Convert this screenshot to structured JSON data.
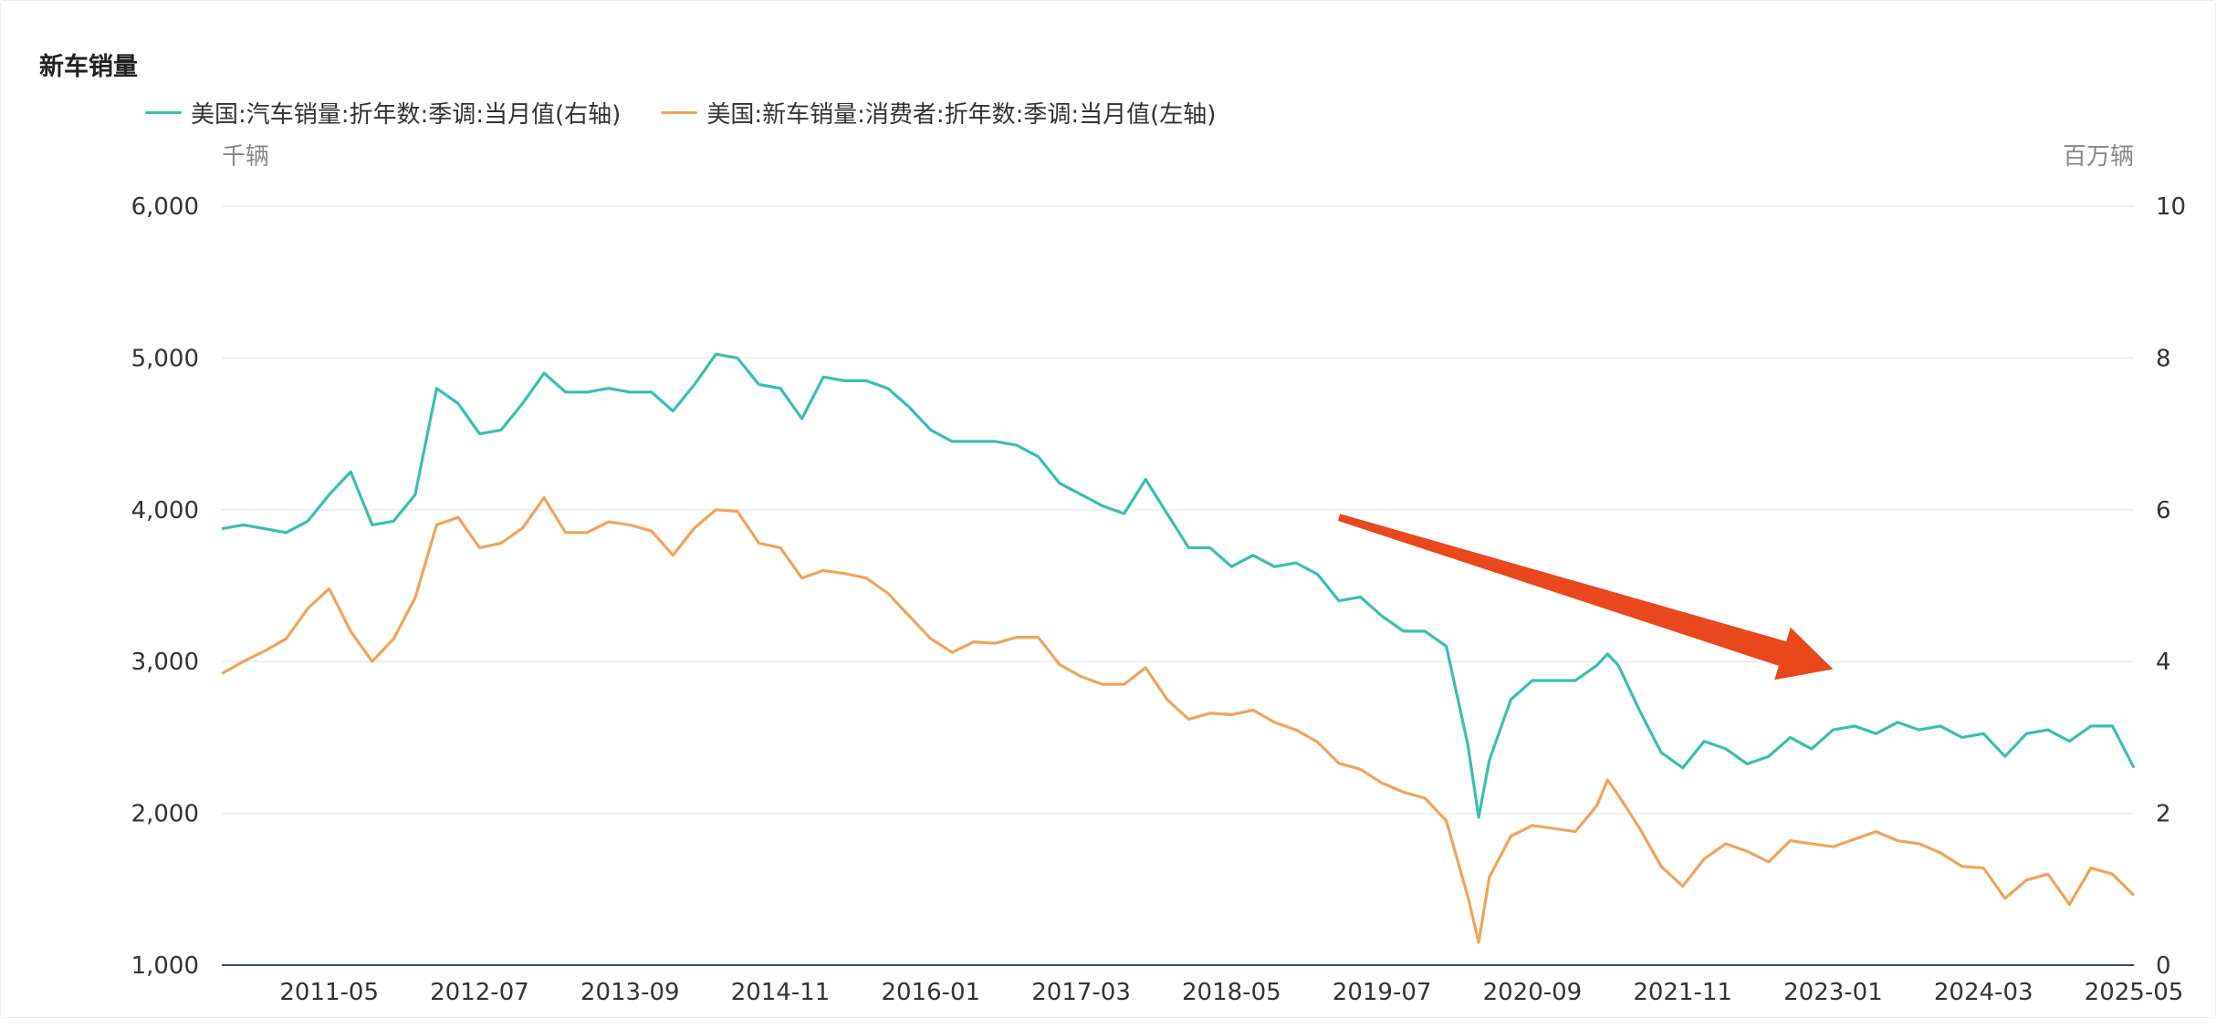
{
  "chart_data": {
    "type": "line",
    "title": "新车销量",
    "y_left_unit": "千辆",
    "y_right_unit": "百万辆",
    "y_left_ticks": [
      "6,000",
      "5,000",
      "4,000",
      "3,000",
      "2,000",
      "1,000"
    ],
    "y_right_ticks": [
      "10",
      "8",
      "6",
      "4",
      "2",
      "0"
    ],
    "y_left_range": [
      1000,
      6000
    ],
    "y_right_range": [
      0,
      10
    ],
    "x_range": [
      "2010-07",
      "2025-05"
    ],
    "x_tick_labels": [
      {
        "date": "2011-05",
        "label": "2011-05"
      },
      {
        "date": "2012-07",
        "label": "2012-07"
      },
      {
        "date": "2013-09",
        "label": "2013-09"
      },
      {
        "date": "2014-11",
        "label": "2014-11"
      },
      {
        "date": "2016-01",
        "label": "2016-01"
      },
      {
        "date": "2017-03",
        "label": "2017-03"
      },
      {
        "date": "2018-05",
        "label": "2018-05"
      },
      {
        "date": "2019-07",
        "label": "2019-07"
      },
      {
        "date": "2020-09",
        "label": "2020-09"
      },
      {
        "date": "2021-11",
        "label": "2021-11"
      },
      {
        "date": "2023-01",
        "label": "2023-01"
      },
      {
        "date": "2024-03",
        "label": "2024-03"
      },
      {
        "date": "2025-05",
        "label": "2025-05"
      }
    ],
    "grid": true,
    "legend_position": "top-left",
    "series": [
      {
        "name": "美国:汽车销量:折年数:季调:当月值(右轴)",
        "axis": "right",
        "color": "#3bbfb0",
        "points": [
          [
            "2010-07",
            5.75
          ],
          [
            "2010-09",
            5.8
          ],
          [
            "2010-11",
            5.75
          ],
          [
            "2011-01",
            5.7
          ],
          [
            "2011-03",
            5.85
          ],
          [
            "2011-05",
            6.2
          ],
          [
            "2011-07",
            6.5
          ],
          [
            "2011-09",
            5.8
          ],
          [
            "2011-11",
            5.85
          ],
          [
            "2012-01",
            6.2
          ],
          [
            "2012-03",
            7.6
          ],
          [
            "2012-05",
            7.4
          ],
          [
            "2012-07",
            7.0
          ],
          [
            "2012-09",
            7.05
          ],
          [
            "2012-11",
            7.4
          ],
          [
            "2013-01",
            7.8
          ],
          [
            "2013-03",
            7.55
          ],
          [
            "2013-05",
            7.55
          ],
          [
            "2013-07",
            7.6
          ],
          [
            "2013-09",
            7.55
          ],
          [
            "2013-11",
            7.55
          ],
          [
            "2014-01",
            7.3
          ],
          [
            "2014-03",
            7.65
          ],
          [
            "2014-05",
            8.05
          ],
          [
            "2014-07",
            8.0
          ],
          [
            "2014-09",
            7.65
          ],
          [
            "2014-11",
            7.6
          ],
          [
            "2015-01",
            7.2
          ],
          [
            "2015-03",
            7.75
          ],
          [
            "2015-05",
            7.7
          ],
          [
            "2015-07",
            7.7
          ],
          [
            "2015-09",
            7.6
          ],
          [
            "2015-11",
            7.35
          ],
          [
            "2016-01",
            7.05
          ],
          [
            "2016-03",
            6.9
          ],
          [
            "2016-05",
            6.9
          ],
          [
            "2016-07",
            6.9
          ],
          [
            "2016-09",
            6.85
          ],
          [
            "2016-11",
            6.7
          ],
          [
            "2017-01",
            6.35
          ],
          [
            "2017-03",
            6.2
          ],
          [
            "2017-05",
            6.05
          ],
          [
            "2017-07",
            5.95
          ],
          [
            "2017-09",
            6.4
          ],
          [
            "2017-11",
            5.95
          ],
          [
            "2018-01",
            5.5
          ],
          [
            "2018-03",
            5.5
          ],
          [
            "2018-05",
            5.25
          ],
          [
            "2018-07",
            5.4
          ],
          [
            "2018-09",
            5.25
          ],
          [
            "2018-11",
            5.3
          ],
          [
            "2019-01",
            5.15
          ],
          [
            "2019-03",
            4.8
          ],
          [
            "2019-05",
            4.85
          ],
          [
            "2019-07",
            4.6
          ],
          [
            "2019-09",
            4.4
          ],
          [
            "2019-11",
            4.4
          ],
          [
            "2020-01",
            4.2
          ],
          [
            "2020-03",
            2.9
          ],
          [
            "2020-04",
            1.95
          ],
          [
            "2020-05",
            2.7
          ],
          [
            "2020-07",
            3.5
          ],
          [
            "2020-09",
            3.75
          ],
          [
            "2020-11",
            3.75
          ],
          [
            "2021-01",
            3.75
          ],
          [
            "2021-03",
            3.95
          ],
          [
            "2021-04",
            4.1
          ],
          [
            "2021-05",
            3.95
          ],
          [
            "2021-07",
            3.35
          ],
          [
            "2021-09",
            2.8
          ],
          [
            "2021-11",
            2.6
          ],
          [
            "2022-01",
            2.95
          ],
          [
            "2022-03",
            2.85
          ],
          [
            "2022-05",
            2.65
          ],
          [
            "2022-07",
            2.75
          ],
          [
            "2022-09",
            3.0
          ],
          [
            "2022-11",
            2.85
          ],
          [
            "2023-01",
            3.1
          ],
          [
            "2023-03",
            3.15
          ],
          [
            "2023-05",
            3.05
          ],
          [
            "2023-07",
            3.2
          ],
          [
            "2023-09",
            3.1
          ],
          [
            "2023-11",
            3.15
          ],
          [
            "2024-01",
            3.0
          ],
          [
            "2024-03",
            3.05
          ],
          [
            "2024-05",
            2.75
          ],
          [
            "2024-07",
            3.05
          ],
          [
            "2024-09",
            3.1
          ],
          [
            "2024-11",
            2.95
          ],
          [
            "2025-01",
            3.15
          ],
          [
            "2025-03",
            3.15
          ],
          [
            "2025-05",
            2.6
          ]
        ]
      },
      {
        "name": "美国:新车销量:消费者:折年数:季调:当月值(左轴)",
        "axis": "left",
        "color": "#f0a55a",
        "points": [
          [
            "2010-07",
            2920
          ],
          [
            "2010-09",
            3000
          ],
          [
            "2010-11",
            3070
          ],
          [
            "2011-01",
            3150
          ],
          [
            "2011-03",
            3350
          ],
          [
            "2011-05",
            3480
          ],
          [
            "2011-07",
            3200
          ],
          [
            "2011-09",
            3000
          ],
          [
            "2011-11",
            3150
          ],
          [
            "2012-01",
            3420
          ],
          [
            "2012-03",
            3900
          ],
          [
            "2012-05",
            3950
          ],
          [
            "2012-07",
            3750
          ],
          [
            "2012-09",
            3780
          ],
          [
            "2012-11",
            3880
          ],
          [
            "2013-01",
            4080
          ],
          [
            "2013-03",
            3850
          ],
          [
            "2013-05",
            3850
          ],
          [
            "2013-07",
            3920
          ],
          [
            "2013-09",
            3900
          ],
          [
            "2013-11",
            3860
          ],
          [
            "2014-01",
            3700
          ],
          [
            "2014-03",
            3880
          ],
          [
            "2014-05",
            4000
          ],
          [
            "2014-07",
            3990
          ],
          [
            "2014-09",
            3780
          ],
          [
            "2014-11",
            3750
          ],
          [
            "2015-01",
            3550
          ],
          [
            "2015-03",
            3600
          ],
          [
            "2015-05",
            3580
          ],
          [
            "2015-07",
            3550
          ],
          [
            "2015-09",
            3450
          ],
          [
            "2015-11",
            3300
          ],
          [
            "2016-01",
            3150
          ],
          [
            "2016-03",
            3060
          ],
          [
            "2016-05",
            3130
          ],
          [
            "2016-07",
            3120
          ],
          [
            "2016-09",
            3160
          ],
          [
            "2016-11",
            3160
          ],
          [
            "2017-01",
            2980
          ],
          [
            "2017-03",
            2900
          ],
          [
            "2017-05",
            2850
          ],
          [
            "2017-07",
            2850
          ],
          [
            "2017-09",
            2960
          ],
          [
            "2017-11",
            2750
          ],
          [
            "2018-01",
            2620
          ],
          [
            "2018-03",
            2660
          ],
          [
            "2018-05",
            2650
          ],
          [
            "2018-07",
            2680
          ],
          [
            "2018-09",
            2600
          ],
          [
            "2018-11",
            2550
          ],
          [
            "2019-01",
            2470
          ],
          [
            "2019-03",
            2330
          ],
          [
            "2019-05",
            2290
          ],
          [
            "2019-07",
            2200
          ],
          [
            "2019-09",
            2140
          ],
          [
            "2019-11",
            2100
          ],
          [
            "2020-01",
            1950
          ],
          [
            "2020-03",
            1450
          ],
          [
            "2020-04",
            1150
          ],
          [
            "2020-05",
            1580
          ],
          [
            "2020-07",
            1850
          ],
          [
            "2020-09",
            1920
          ],
          [
            "2020-11",
            1900
          ],
          [
            "2021-01",
            1880
          ],
          [
            "2021-03",
            2050
          ],
          [
            "2021-04",
            2220
          ],
          [
            "2021-05",
            2120
          ],
          [
            "2021-07",
            1900
          ],
          [
            "2021-09",
            1650
          ],
          [
            "2021-11",
            1520
          ],
          [
            "2022-01",
            1700
          ],
          [
            "2022-03",
            1800
          ],
          [
            "2022-05",
            1750
          ],
          [
            "2022-07",
            1680
          ],
          [
            "2022-09",
            1820
          ],
          [
            "2022-11",
            1800
          ],
          [
            "2023-01",
            1780
          ],
          [
            "2023-03",
            1830
          ],
          [
            "2023-05",
            1880
          ],
          [
            "2023-07",
            1820
          ],
          [
            "2023-09",
            1800
          ],
          [
            "2023-11",
            1740
          ],
          [
            "2024-01",
            1650
          ],
          [
            "2024-03",
            1640
          ],
          [
            "2024-05",
            1440
          ],
          [
            "2024-07",
            1560
          ],
          [
            "2024-09",
            1600
          ],
          [
            "2024-11",
            1400
          ],
          [
            "2025-01",
            1640
          ],
          [
            "2025-03",
            1600
          ],
          [
            "2025-05",
            1460
          ]
        ]
      }
    ],
    "annotations": [
      {
        "type": "arrow",
        "color": "#e8481c",
        "from": [
          "2019-03",
          5.9
        ],
        "to": [
          "2023-01",
          3.9
        ]
      }
    ]
  }
}
